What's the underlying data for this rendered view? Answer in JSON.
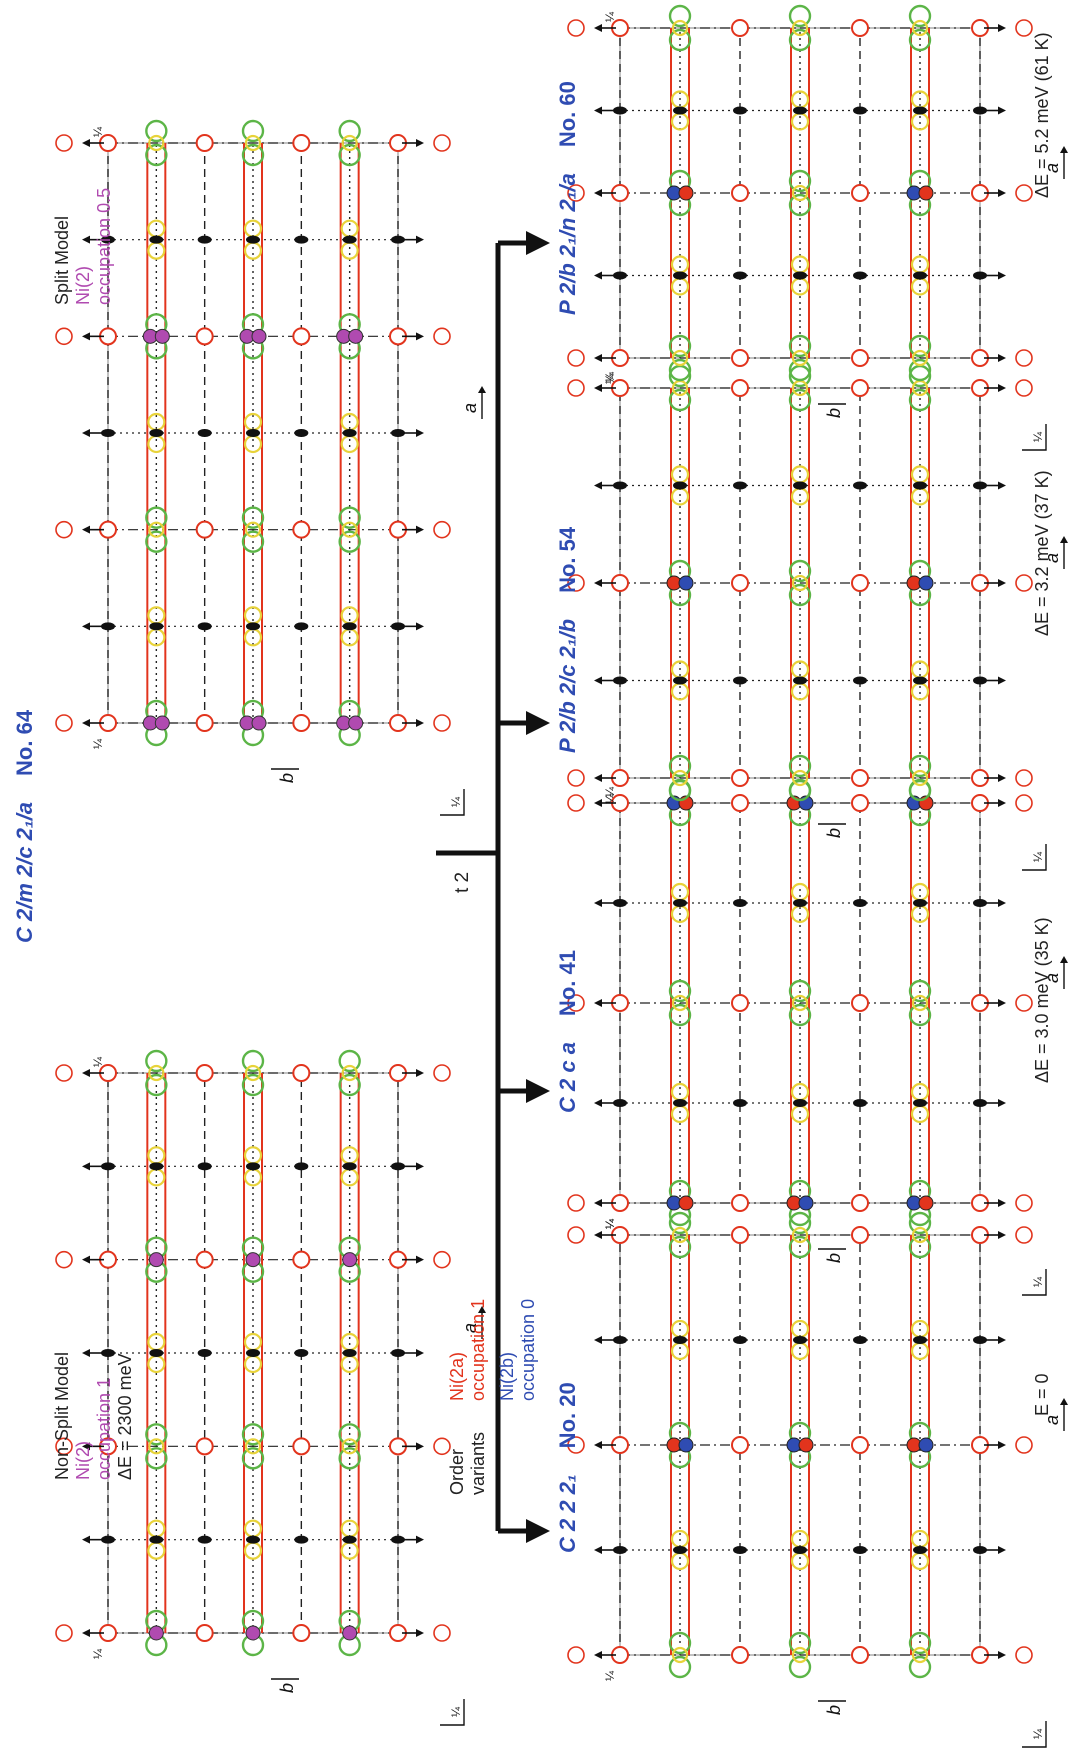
{
  "parent": {
    "symbol": "C 2/m 2/c 2₁/a",
    "number": "No. 64"
  },
  "nonsplit": {
    "l1": "Non-Split Model",
    "l2": "Ni(2)",
    "l3": "occupation 1",
    "l4": "ΔE = 2300 meV"
  },
  "split": {
    "l1": "Split Model",
    "l2": "Ni(2)",
    "l3": "occupation 0.5"
  },
  "branch_label": "t 2",
  "order": {
    "l1": "Order",
    "l2": "variants",
    "ni2a": "Ni(2a)",
    "ni2a_occ": "occupation 1",
    "ni2b": "Ni(2b)",
    "ni2b_occ": "occupation 0"
  },
  "variants": [
    {
      "symbol": "C 2 2 2₁",
      "number": "No. 20",
      "energy": "E = 0"
    },
    {
      "symbol": "C 2 c a",
      "number": "No. 41",
      "energy": "ΔE = 3.0 meV (35 K)"
    },
    {
      "symbol": "P 2/b 2/c 2₁/b",
      "number": "No. 54",
      "energy": "ΔE = 3.2 meV (37 K)"
    },
    {
      "symbol": "P 2/b 2₁/n 2₁/a",
      "number": "No. 60",
      "energy": "ΔE = 5.2 meV (61 K)"
    }
  ],
  "axes": {
    "a": "a",
    "b": "b",
    "quarter": "¼"
  },
  "colors": {
    "red": "#e2341d",
    "blue": "#2f4cb2",
    "magenta": "#b04ab0",
    "green": "#5cb547",
    "yellow": "#e8d33a"
  }
}
